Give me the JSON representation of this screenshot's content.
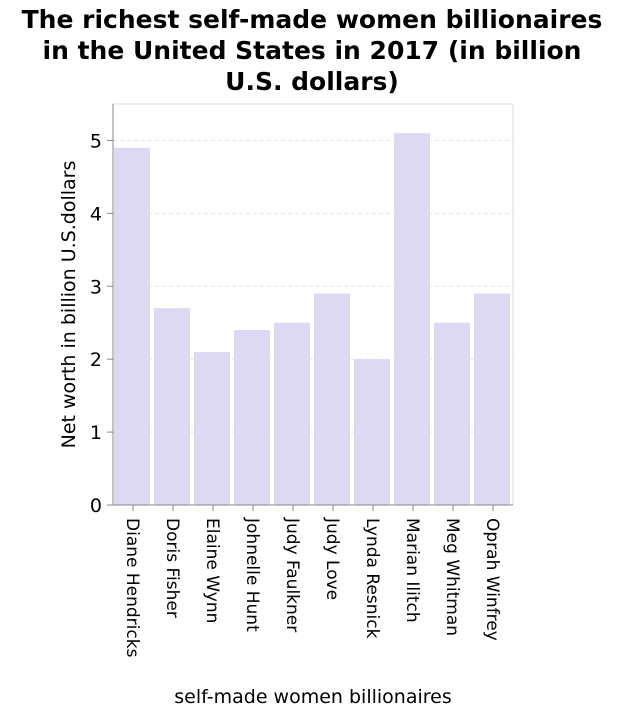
{
  "chart_data": {
    "type": "bar",
    "title_lines": [
      "The richest self-made women billionaires",
      "in the United States in 2017 (in billion",
      "U.S. dollars)"
    ],
    "xlabel": "self-made women billionaires",
    "ylabel": "Net worth in billion U.S.dollars",
    "categories": [
      "Diane Hendricks",
      "Doris Fisher",
      "Elaine Wynn",
      "Johnelle Hunt",
      "Judy Faulkner",
      "Judy Love",
      "Lynda Resnick",
      "Marian Ilitch",
      "Meg Whitman",
      "Oprah Winfrey"
    ],
    "values": [
      4.9,
      2.7,
      2.1,
      2.4,
      2.5,
      2.9,
      2.0,
      5.1,
      2.5,
      2.9
    ],
    "ylim": [
      0,
      5.5
    ],
    "yticks": [
      "0",
      "1",
      "2",
      "3",
      "4",
      "5"
    ],
    "grid": true,
    "bar_color": "#ddd9f3"
  }
}
